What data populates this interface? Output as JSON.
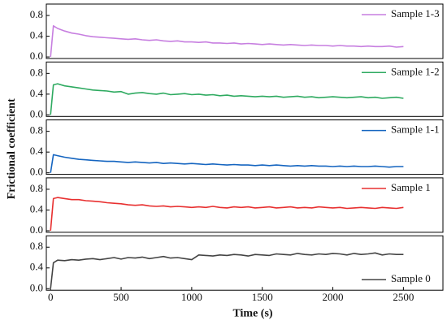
{
  "chart_data": [
    {
      "type": "line",
      "ylabel": "Frictional coefficient",
      "x": [
        0,
        20,
        50,
        100,
        150,
        200,
        250,
        300,
        350,
        400,
        450,
        500,
        550,
        600,
        650,
        700,
        750,
        800,
        850,
        900,
        950,
        1000,
        1050,
        1100,
        1150,
        1200,
        1250,
        1300,
        1350,
        1400,
        1450,
        1500,
        1550,
        1600,
        1650,
        1700,
        1750,
        1800,
        1850,
        1900,
        1950,
        2000,
        2050,
        2100,
        2150,
        2200,
        2250,
        2300,
        2350,
        2400,
        2450,
        2500
      ],
      "xlim": [
        -30,
        2780
      ],
      "ylim": [
        -0.03,
        1.02
      ],
      "yticks": [
        {
          "value": 0,
          "label": "0.0"
        },
        0.4,
        0.8
      ],
      "legend": "upper right",
      "series": [
        {
          "name": "Sample 1-3",
          "color": "#c77fe0",
          "values": [
            0,
            0.6,
            0.55,
            0.5,
            0.46,
            0.44,
            0.41,
            0.39,
            0.38,
            0.37,
            0.36,
            0.35,
            0.34,
            0.35,
            0.33,
            0.32,
            0.33,
            0.31,
            0.3,
            0.31,
            0.29,
            0.29,
            0.28,
            0.29,
            0.27,
            0.27,
            0.26,
            0.27,
            0.25,
            0.26,
            0.25,
            0.24,
            0.25,
            0.24,
            0.23,
            0.24,
            0.23,
            0.22,
            0.23,
            0.22,
            0.22,
            0.21,
            0.22,
            0.21,
            0.21,
            0.2,
            0.21,
            0.2,
            0.2,
            0.21,
            0.19,
            0.2
          ]
        }
      ]
    },
    {
      "type": "line",
      "x": [
        0,
        20,
        50,
        100,
        150,
        200,
        250,
        300,
        350,
        400,
        450,
        500,
        550,
        600,
        650,
        700,
        750,
        800,
        850,
        900,
        950,
        1000,
        1050,
        1100,
        1150,
        1200,
        1250,
        1300,
        1350,
        1400,
        1450,
        1500,
        1550,
        1600,
        1650,
        1700,
        1750,
        1800,
        1850,
        1900,
        1950,
        2000,
        2050,
        2100,
        2150,
        2200,
        2250,
        2300,
        2350,
        2400,
        2450,
        2500
      ],
      "xlim": [
        -30,
        2780
      ],
      "ylim": [
        -0.03,
        1.02
      ],
      "yticks": [
        {
          "value": 0,
          "label": "0.0"
        },
        0.4,
        0.8
      ],
      "legend": "upper right",
      "series": [
        {
          "name": "Sample 1-2",
          "color": "#2eaa60",
          "values": [
            0,
            0.58,
            0.6,
            0.56,
            0.54,
            0.52,
            0.5,
            0.48,
            0.47,
            0.46,
            0.44,
            0.45,
            0.4,
            0.42,
            0.43,
            0.41,
            0.4,
            0.42,
            0.39,
            0.4,
            0.41,
            0.39,
            0.4,
            0.38,
            0.39,
            0.37,
            0.38,
            0.36,
            0.37,
            0.36,
            0.35,
            0.36,
            0.35,
            0.36,
            0.34,
            0.35,
            0.36,
            0.34,
            0.35,
            0.33,
            0.34,
            0.35,
            0.34,
            0.33,
            0.34,
            0.35,
            0.33,
            0.34,
            0.32,
            0.33,
            0.34,
            0.32
          ]
        }
      ]
    },
    {
      "type": "line",
      "x": [
        0,
        20,
        50,
        100,
        150,
        200,
        250,
        300,
        350,
        400,
        450,
        500,
        550,
        600,
        650,
        700,
        750,
        800,
        850,
        900,
        950,
        1000,
        1050,
        1100,
        1150,
        1200,
        1250,
        1300,
        1350,
        1400,
        1450,
        1500,
        1550,
        1600,
        1650,
        1700,
        1750,
        1800,
        1850,
        1900,
        1950,
        2000,
        2050,
        2100,
        2150,
        2200,
        2250,
        2300,
        2350,
        2400,
        2450,
        2500
      ],
      "xlim": [
        -30,
        2780
      ],
      "ylim": [
        -0.03,
        1.02
      ],
      "yticks": [
        {
          "value": 0,
          "label": "0.0"
        },
        0.4,
        0.8
      ],
      "legend": "upper right",
      "series": [
        {
          "name": "Sample 1-1",
          "color": "#1565c0",
          "values": [
            0,
            0.35,
            0.33,
            0.3,
            0.28,
            0.26,
            0.25,
            0.24,
            0.23,
            0.22,
            0.22,
            0.21,
            0.2,
            0.21,
            0.2,
            0.19,
            0.2,
            0.18,
            0.19,
            0.18,
            0.17,
            0.18,
            0.17,
            0.16,
            0.17,
            0.16,
            0.15,
            0.16,
            0.15,
            0.15,
            0.14,
            0.15,
            0.14,
            0.15,
            0.14,
            0.13,
            0.14,
            0.13,
            0.14,
            0.13,
            0.13,
            0.12,
            0.13,
            0.12,
            0.13,
            0.12,
            0.12,
            0.13,
            0.12,
            0.11,
            0.12,
            0.12
          ]
        }
      ]
    },
    {
      "type": "line",
      "x": [
        0,
        20,
        50,
        100,
        150,
        200,
        250,
        300,
        350,
        400,
        450,
        500,
        550,
        600,
        650,
        700,
        750,
        800,
        850,
        900,
        950,
        1000,
        1050,
        1100,
        1150,
        1200,
        1250,
        1300,
        1350,
        1400,
        1450,
        1500,
        1550,
        1600,
        1650,
        1700,
        1750,
        1800,
        1850,
        1900,
        1950,
        2000,
        2050,
        2100,
        2150,
        2200,
        2250,
        2300,
        2350,
        2400,
        2450,
        2500
      ],
      "xlim": [
        -30,
        2780
      ],
      "ylim": [
        -0.03,
        1.02
      ],
      "yticks": [
        {
          "value": 0,
          "label": "0.0"
        },
        0.4,
        0.8
      ],
      "legend": "upper right",
      "series": [
        {
          "name": "Sample 1",
          "color": "#e83030",
          "values": [
            0,
            0.62,
            0.64,
            0.62,
            0.6,
            0.6,
            0.58,
            0.57,
            0.56,
            0.54,
            0.53,
            0.52,
            0.5,
            0.49,
            0.5,
            0.48,
            0.47,
            0.48,
            0.46,
            0.47,
            0.46,
            0.45,
            0.46,
            0.45,
            0.47,
            0.45,
            0.44,
            0.46,
            0.45,
            0.46,
            0.44,
            0.45,
            0.46,
            0.44,
            0.45,
            0.46,
            0.44,
            0.45,
            0.44,
            0.46,
            0.45,
            0.44,
            0.45,
            0.43,
            0.44,
            0.45,
            0.44,
            0.43,
            0.45,
            0.44,
            0.43,
            0.45
          ]
        }
      ]
    },
    {
      "type": "line",
      "xlabel": "Time (s)",
      "x": [
        0,
        20,
        50,
        100,
        150,
        200,
        250,
        300,
        350,
        400,
        450,
        500,
        550,
        600,
        650,
        700,
        750,
        800,
        850,
        900,
        950,
        1000,
        1050,
        1100,
        1150,
        1200,
        1250,
        1300,
        1350,
        1400,
        1450,
        1500,
        1550,
        1600,
        1650,
        1700,
        1750,
        1800,
        1850,
        1900,
        1950,
        2000,
        2050,
        2100,
        2150,
        2200,
        2250,
        2300,
        2350,
        2400,
        2450,
        2500
      ],
      "xlim": [
        -30,
        2780
      ],
      "xticks": [
        0,
        500,
        1000,
        1500,
        2000,
        2500
      ],
      "ylim": [
        -0.03,
        1.02
      ],
      "yticks": [
        {
          "value": 0,
          "label": "0.0"
        },
        0.4,
        0.8
      ],
      "legend": "lower right",
      "series": [
        {
          "name": "Sample 0",
          "color": "#444444",
          "values": [
            0,
            0.5,
            0.55,
            0.54,
            0.56,
            0.55,
            0.57,
            0.58,
            0.56,
            0.58,
            0.6,
            0.57,
            0.6,
            0.59,
            0.61,
            0.58,
            0.6,
            0.62,
            0.59,
            0.6,
            0.58,
            0.56,
            0.65,
            0.64,
            0.63,
            0.65,
            0.64,
            0.66,
            0.65,
            0.63,
            0.66,
            0.65,
            0.64,
            0.67,
            0.66,
            0.65,
            0.68,
            0.66,
            0.65,
            0.67,
            0.66,
            0.68,
            0.67,
            0.65,
            0.68,
            0.66,
            0.67,
            0.69,
            0.65,
            0.67,
            0.66,
            0.66
          ]
        }
      ]
    }
  ]
}
